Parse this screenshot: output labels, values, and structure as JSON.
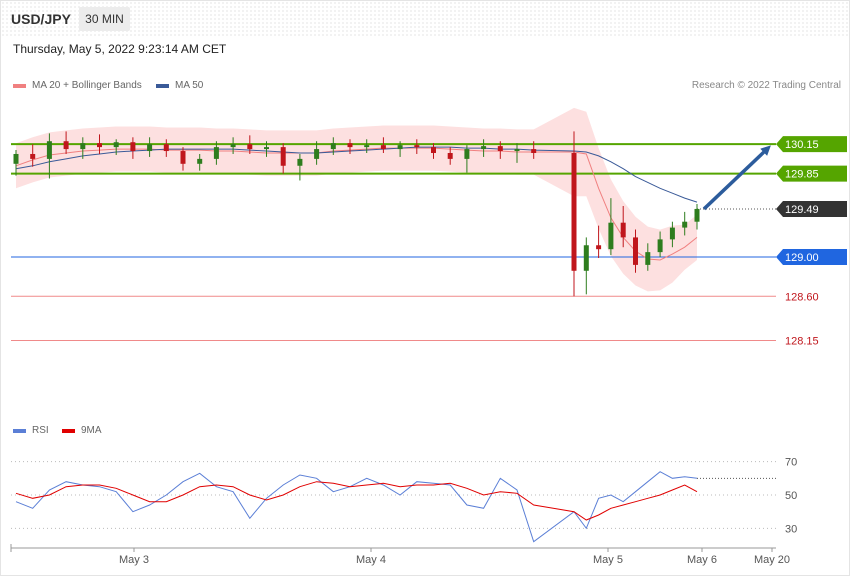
{
  "header": {
    "symbol": "USD/JPY",
    "timeframe": "30 MIN",
    "datetime": "Thursday, May 5, 2022 9:23:14 AM CET"
  },
  "legend": {
    "ma20": {
      "label": "MA 20 + Bollinger Bands",
      "color": "#f08080"
    },
    "ma50": {
      "label": "MA 50",
      "color": "#3a5a98"
    },
    "copyright": "Research © 2022 Trading Central"
  },
  "colors": {
    "bull": "#2e7d1e",
    "bear": "#c0161c",
    "resistance": "#55a500",
    "support_blue": "#2066e0",
    "support_red": "#f08a8a",
    "band_fill": "#fde0e0",
    "current": "#333333",
    "arrow": "#2c5c9c",
    "rsi": "#5b7fd6",
    "rsi_ma": "#e00000"
  },
  "rsi_legend": {
    "rsi_label": "RSI",
    "ma_label": "9MA"
  },
  "chart_data": [
    {
      "type": "candlestick",
      "title": "USD/JPY 30 MIN",
      "x_labels": [
        "May 3",
        "May 4",
        "May 5",
        "May 6",
        "May 20"
      ],
      "ylim": [
        127.9,
        130.6
      ],
      "levels": [
        {
          "value": 130.15,
          "label": "130.15",
          "kind": "resistance"
        },
        {
          "value": 129.85,
          "label": "129.85",
          "kind": "resistance"
        },
        {
          "value": 129.49,
          "label": "129.49",
          "kind": "current"
        },
        {
          "value": 129.0,
          "label": "129.00",
          "kind": "support"
        },
        {
          "value": 128.6,
          "label": "128.60",
          "kind": "support_minor"
        },
        {
          "value": 128.15,
          "label": "128.15",
          "kind": "support_minor"
        }
      ],
      "forecast_arrow": {
        "from": 129.49,
        "to": 130.15
      },
      "series": [
        {
          "name": "MA 20 + Bollinger Bands",
          "values": [
            129.93,
            129.99,
            130.04,
            130.06,
            130.08,
            130.09,
            130.1,
            130.1,
            130.1,
            130.09,
            130.09,
            130.09,
            130.08,
            130.08,
            130.07,
            130.06,
            130.06,
            130.06,
            130.06,
            130.08,
            130.09,
            130.1,
            130.11,
            130.11,
            130.11,
            130.11,
            130.1,
            130.09,
            130.08,
            130.08,
            130.07,
            130.07,
            130.07,
            130.05,
            129.7,
            129.4,
            129.2,
            129.06,
            128.98,
            128.97,
            129.03,
            129.1,
            129.2
          ]
        },
        {
          "name": "MA 50",
          "values": [
            129.9,
            129.93,
            129.97,
            130.0,
            130.03,
            130.05,
            130.07,
            130.08,
            130.09,
            130.1,
            130.1,
            130.1,
            130.1,
            130.1,
            130.09,
            130.08,
            130.07,
            130.06,
            130.06,
            130.07,
            130.08,
            130.09,
            130.1,
            130.11,
            130.12,
            130.12,
            130.12,
            130.11,
            130.11,
            130.1,
            130.1,
            130.09,
            130.08,
            130.07,
            130.03,
            129.97,
            129.9,
            129.82,
            129.76,
            129.7,
            129.65,
            129.6,
            129.56
          ]
        }
      ],
      "ohlc": [
        [
          129.95,
          130.09,
          129.83,
          130.05
        ],
        [
          130.05,
          130.15,
          129.92,
          130.0
        ],
        [
          130.0,
          130.26,
          129.8,
          130.18
        ],
        [
          130.18,
          130.28,
          130.05,
          130.1
        ],
        [
          130.1,
          130.22,
          130.0,
          130.16
        ],
        [
          130.16,
          130.25,
          130.05,
          130.12
        ],
        [
          130.12,
          130.2,
          130.04,
          130.17
        ],
        [
          130.17,
          130.22,
          130.0,
          130.08
        ],
        [
          130.08,
          130.22,
          130.02,
          130.15
        ],
        [
          130.15,
          130.2,
          130.02,
          130.08
        ],
        [
          130.08,
          130.12,
          129.88,
          129.95
        ],
        [
          129.95,
          130.05,
          129.88,
          130.0
        ],
        [
          130.0,
          130.18,
          129.94,
          130.12
        ],
        [
          130.12,
          130.22,
          130.05,
          130.15
        ],
        [
          130.15,
          130.24,
          130.05,
          130.1
        ],
        [
          130.1,
          130.18,
          130.02,
          130.12
        ],
        [
          130.12,
          130.16,
          129.85,
          129.93
        ],
        [
          129.93,
          130.05,
          129.78,
          130.0
        ],
        [
          130.0,
          130.18,
          129.94,
          130.1
        ],
        [
          130.1,
          130.22,
          130.04,
          130.16
        ],
        [
          130.16,
          130.2,
          130.05,
          130.12
        ],
        [
          130.12,
          130.2,
          130.06,
          130.14
        ],
        [
          130.14,
          130.22,
          130.06,
          130.1
        ],
        [
          130.1,
          130.18,
          130.02,
          130.14
        ],
        [
          130.14,
          130.2,
          130.05,
          130.12
        ],
        [
          130.12,
          130.16,
          130.0,
          130.06
        ],
        [
          130.06,
          130.12,
          129.94,
          130.0
        ],
        [
          130.0,
          130.14,
          129.86,
          130.1
        ],
        [
          130.1,
          130.2,
          130.02,
          130.13
        ],
        [
          130.13,
          130.18,
          130.0,
          130.08
        ],
        [
          130.08,
          130.16,
          129.96,
          130.1
        ],
        [
          130.1,
          130.18,
          130.0,
          130.06
        ],
        [
          130.06,
          130.28,
          128.6,
          128.86
        ],
        [
          128.86,
          129.2,
          128.62,
          129.12
        ],
        [
          129.12,
          129.32,
          128.99,
          129.08
        ],
        [
          129.08,
          129.6,
          129.02,
          129.35
        ],
        [
          129.35,
          129.52,
          129.1,
          129.2
        ],
        [
          129.2,
          129.28,
          128.84,
          128.92
        ],
        [
          128.92,
          129.14,
          128.86,
          129.05
        ],
        [
          129.05,
          129.26,
          129.0,
          129.18
        ],
        [
          129.18,
          129.36,
          129.1,
          129.3
        ],
        [
          129.3,
          129.46,
          129.22,
          129.36
        ],
        [
          129.36,
          129.54,
          129.28,
          129.49
        ]
      ]
    },
    {
      "type": "line",
      "title": "RSI",
      "ylim": [
        20,
        80
      ],
      "y_ticks": [
        70,
        50,
        30
      ],
      "series": [
        {
          "name": "RSI",
          "values": [
            46,
            42,
            53,
            58,
            56,
            55,
            52,
            40,
            44,
            50,
            58,
            63,
            55,
            52,
            36,
            48,
            56,
            62,
            60,
            52,
            55,
            60,
            56,
            50,
            58,
            57,
            56,
            44,
            42,
            60,
            53,
            22,
            40,
            30,
            48,
            50,
            46,
            52,
            58,
            64,
            60,
            61,
            60
          ]
        },
        {
          "name": "9MA",
          "values": [
            51,
            48,
            50,
            55,
            56,
            56,
            54,
            50,
            46,
            46,
            50,
            55,
            56,
            55,
            50,
            47,
            50,
            55,
            58,
            57,
            55,
            56,
            57,
            55,
            56,
            56,
            57,
            54,
            50,
            52,
            51,
            44,
            40,
            35,
            38,
            42,
            44,
            46,
            48,
            50,
            53,
            56,
            52
          ]
        }
      ]
    }
  ]
}
